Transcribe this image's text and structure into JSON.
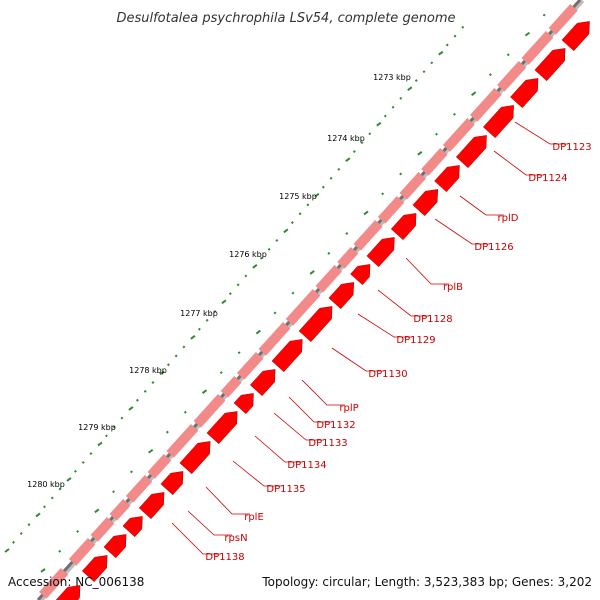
{
  "title": "Desulfotalea psychrophila LSv54, complete genome",
  "accession": "Accession: NC_006138",
  "topology": "Topology: circular; Length: 3,523,383 bp; Genes: 3,202",
  "colors": {
    "backbone": "#7a7a7a",
    "gene_forward": "#ff0000",
    "gene_reverse": "#f28a8a",
    "tick": "#2e8b2e",
    "label": "#cc0000"
  },
  "ticks": [
    {
      "label": "1273 kbp"
    },
    {
      "label": "1274 kbp"
    },
    {
      "label": "1275 kbp"
    },
    {
      "label": "1276 kbp"
    },
    {
      "label": "1277 kbp"
    },
    {
      "label": "1278 kbp"
    },
    {
      "label": "1279 kbp"
    },
    {
      "label": "1280 kbp"
    }
  ],
  "genes": [
    {
      "name": "DP1123"
    },
    {
      "name": "DP1124"
    },
    {
      "name": "rplD"
    },
    {
      "name": "DP1126"
    },
    {
      "name": "rplB"
    },
    {
      "name": "DP1128"
    },
    {
      "name": "DP1129"
    },
    {
      "name": "DP1130"
    },
    {
      "name": "rplP"
    },
    {
      "name": "DP1132"
    },
    {
      "name": "DP1133"
    },
    {
      "name": "DP1134"
    },
    {
      "name": "DP1135"
    },
    {
      "name": "rplE"
    },
    {
      "name": "rpsN"
    },
    {
      "name": "DP1138"
    }
  ]
}
